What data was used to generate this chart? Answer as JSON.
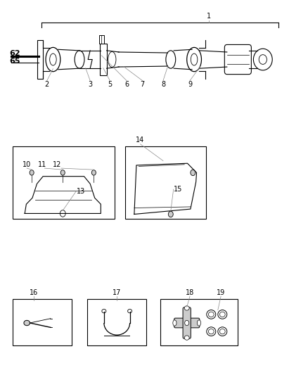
{
  "bg_color": "#ffffff",
  "line_color": "#000000",
  "gray_color": "#888888",
  "light_gray": "#cccccc",
  "fig_width": 4.38,
  "fig_height": 5.33
}
